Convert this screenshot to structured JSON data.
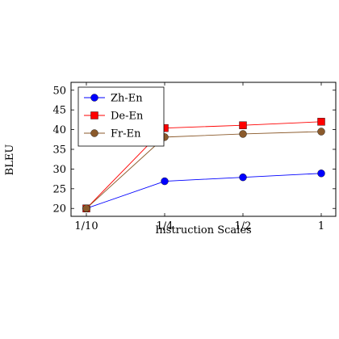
{
  "chart_data": {
    "type": "line",
    "categories": [
      "1/10",
      "1/4",
      "1/2",
      "1"
    ],
    "xlabel": "Instruction Scales",
    "ylabel": "BLEU",
    "ylim": [
      18,
      52
    ],
    "yticks": [
      20,
      25,
      30,
      35,
      40,
      45,
      50
    ],
    "grid": false,
    "legend_position": "top-left",
    "series": [
      {
        "name": "Zh-En",
        "values": [
          20,
          26.9,
          27.9,
          28.9
        ],
        "color": "#0000ff",
        "marker": "circle"
      },
      {
        "name": "De-En",
        "values": [
          20,
          40.4,
          41.1,
          42.0
        ],
        "color": "#ff0000",
        "marker": "square"
      },
      {
        "name": "Fr-En",
        "values": [
          20,
          38.1,
          38.9,
          39.5
        ],
        "color": "#8b5a2b",
        "marker": "circle"
      }
    ]
  }
}
